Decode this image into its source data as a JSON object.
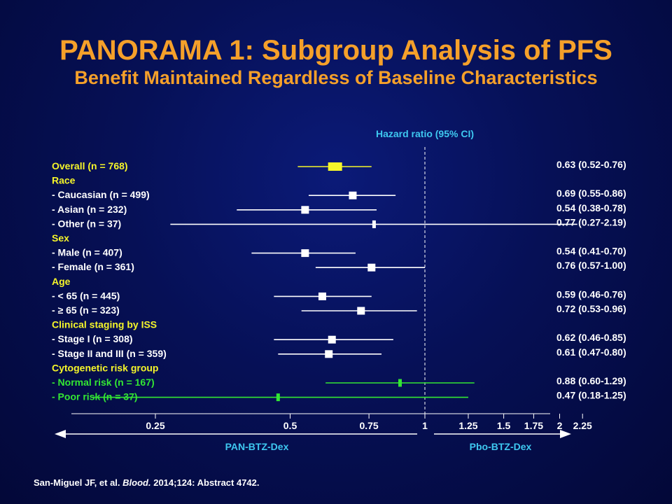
{
  "title": "PANORAMA 1: Subgroup Analysis of PFS",
  "subtitle": "Benefit Maintained Regardless of Baseline Characteristics",
  "citation": {
    "authors": "San-Miguel JF, et al.",
    "journal": "Blood.",
    "details": "2014;124: Abstract 4742."
  },
  "colors": {
    "title": "#f5a02a",
    "axis_header": "#3ec8f0",
    "category": "#f5f52a",
    "subgroup": "#ffffff",
    "highlight": "#f5f52a",
    "cytogenetic": "#33e633"
  },
  "chart_data": {
    "type": "forest",
    "title": "",
    "xlabel": "Hazard ratio (95% CI)",
    "x_scale": "log",
    "xlim": [
      0.25,
      2.25
    ],
    "reference_line": 1,
    "x_ticks": [
      0.25,
      0.5,
      0.75,
      1,
      1.25,
      1.5,
      1.75,
      2,
      2.25
    ],
    "x_tick_labels": [
      "0.25",
      "0.5",
      "0.75",
      "1",
      "1.25",
      "1.5",
      "1.75",
      "2",
      "2.25"
    ],
    "favors_left": "PAN-BTZ-Dex",
    "favors_right": "Pbo-BTZ-Dex",
    "rows": [
      {
        "label": "Overall (n = 768)",
        "kind": "overall",
        "color": "#f5f52a",
        "hr": 0.63,
        "lo": 0.52,
        "hi": 0.76,
        "text": "0.63 (0.52-0.76)"
      },
      {
        "label": "Race",
        "kind": "header",
        "color": "#f5f52a"
      },
      {
        "label": "- Caucasian (n = 499)",
        "kind": "subgroup",
        "color": "#ffffff",
        "hr": 0.69,
        "lo": 0.55,
        "hi": 0.86,
        "text": "0.69 (0.55-0.86)"
      },
      {
        "label": "- Asian (n = 232)",
        "kind": "subgroup",
        "color": "#ffffff",
        "hr": 0.54,
        "lo": 0.38,
        "hi": 0.78,
        "text": "0.54 (0.38-0.78)"
      },
      {
        "label": "- Other (n = 37)",
        "kind": "subgroup",
        "color": "#ffffff",
        "hr": 0.77,
        "lo": 0.27,
        "hi": 2.19,
        "text": "0.77 (0.27-2.19)",
        "small": true
      },
      {
        "label": "Sex",
        "kind": "header",
        "color": "#f5f52a"
      },
      {
        "label": "- Male (n = 407)",
        "kind": "subgroup",
        "color": "#ffffff",
        "hr": 0.54,
        "lo": 0.41,
        "hi": 0.7,
        "text": "0.54 (0.41-0.70)"
      },
      {
        "label": "- Female (n = 361)",
        "kind": "subgroup",
        "color": "#ffffff",
        "hr": 0.76,
        "lo": 0.57,
        "hi": 1.0,
        "text": "0.76 (0.57-1.00)"
      },
      {
        "label": "Age",
        "kind": "header",
        "color": "#f5f52a"
      },
      {
        "label": "- < 65 (n = 445)",
        "kind": "subgroup",
        "color": "#ffffff",
        "hr": 0.59,
        "lo": 0.46,
        "hi": 0.76,
        "text": "0.59 (0.46-0.76)"
      },
      {
        "label": "- ≥ 65 (n = 323)",
        "kind": "subgroup",
        "color": "#ffffff",
        "hr": 0.72,
        "lo": 0.53,
        "hi": 0.96,
        "text": "0.72 (0.53-0.96)"
      },
      {
        "label": "Clinical staging by ISS",
        "kind": "header",
        "color": "#f5f52a"
      },
      {
        "label": "- Stage I (n = 308)",
        "kind": "subgroup",
        "color": "#ffffff",
        "hr": 0.62,
        "lo": 0.46,
        "hi": 0.85,
        "text": "0.62 (0.46-0.85)"
      },
      {
        "label": "- Stage II and III (n = 359)",
        "kind": "subgroup",
        "color": "#ffffff",
        "hr": 0.61,
        "lo": 0.47,
        "hi": 0.8,
        "text": "0.61 (0.47-0.80)"
      },
      {
        "label": "Cytogenetic risk group",
        "kind": "header",
        "color": "#f5f52a"
      },
      {
        "label": "- Normal risk (n = 167)",
        "kind": "subgroup",
        "color": "#33e633",
        "hr": 0.88,
        "lo": 0.6,
        "hi": 1.29,
        "text": "0.88 (0.60-1.29)",
        "small": true
      },
      {
        "label": "- Poor risk (n = 37)",
        "kind": "subgroup",
        "color": "#33e633",
        "hr": 0.47,
        "lo": 0.18,
        "hi": 1.25,
        "text": "0.47 (0.18-1.25)",
        "small": true
      }
    ]
  }
}
